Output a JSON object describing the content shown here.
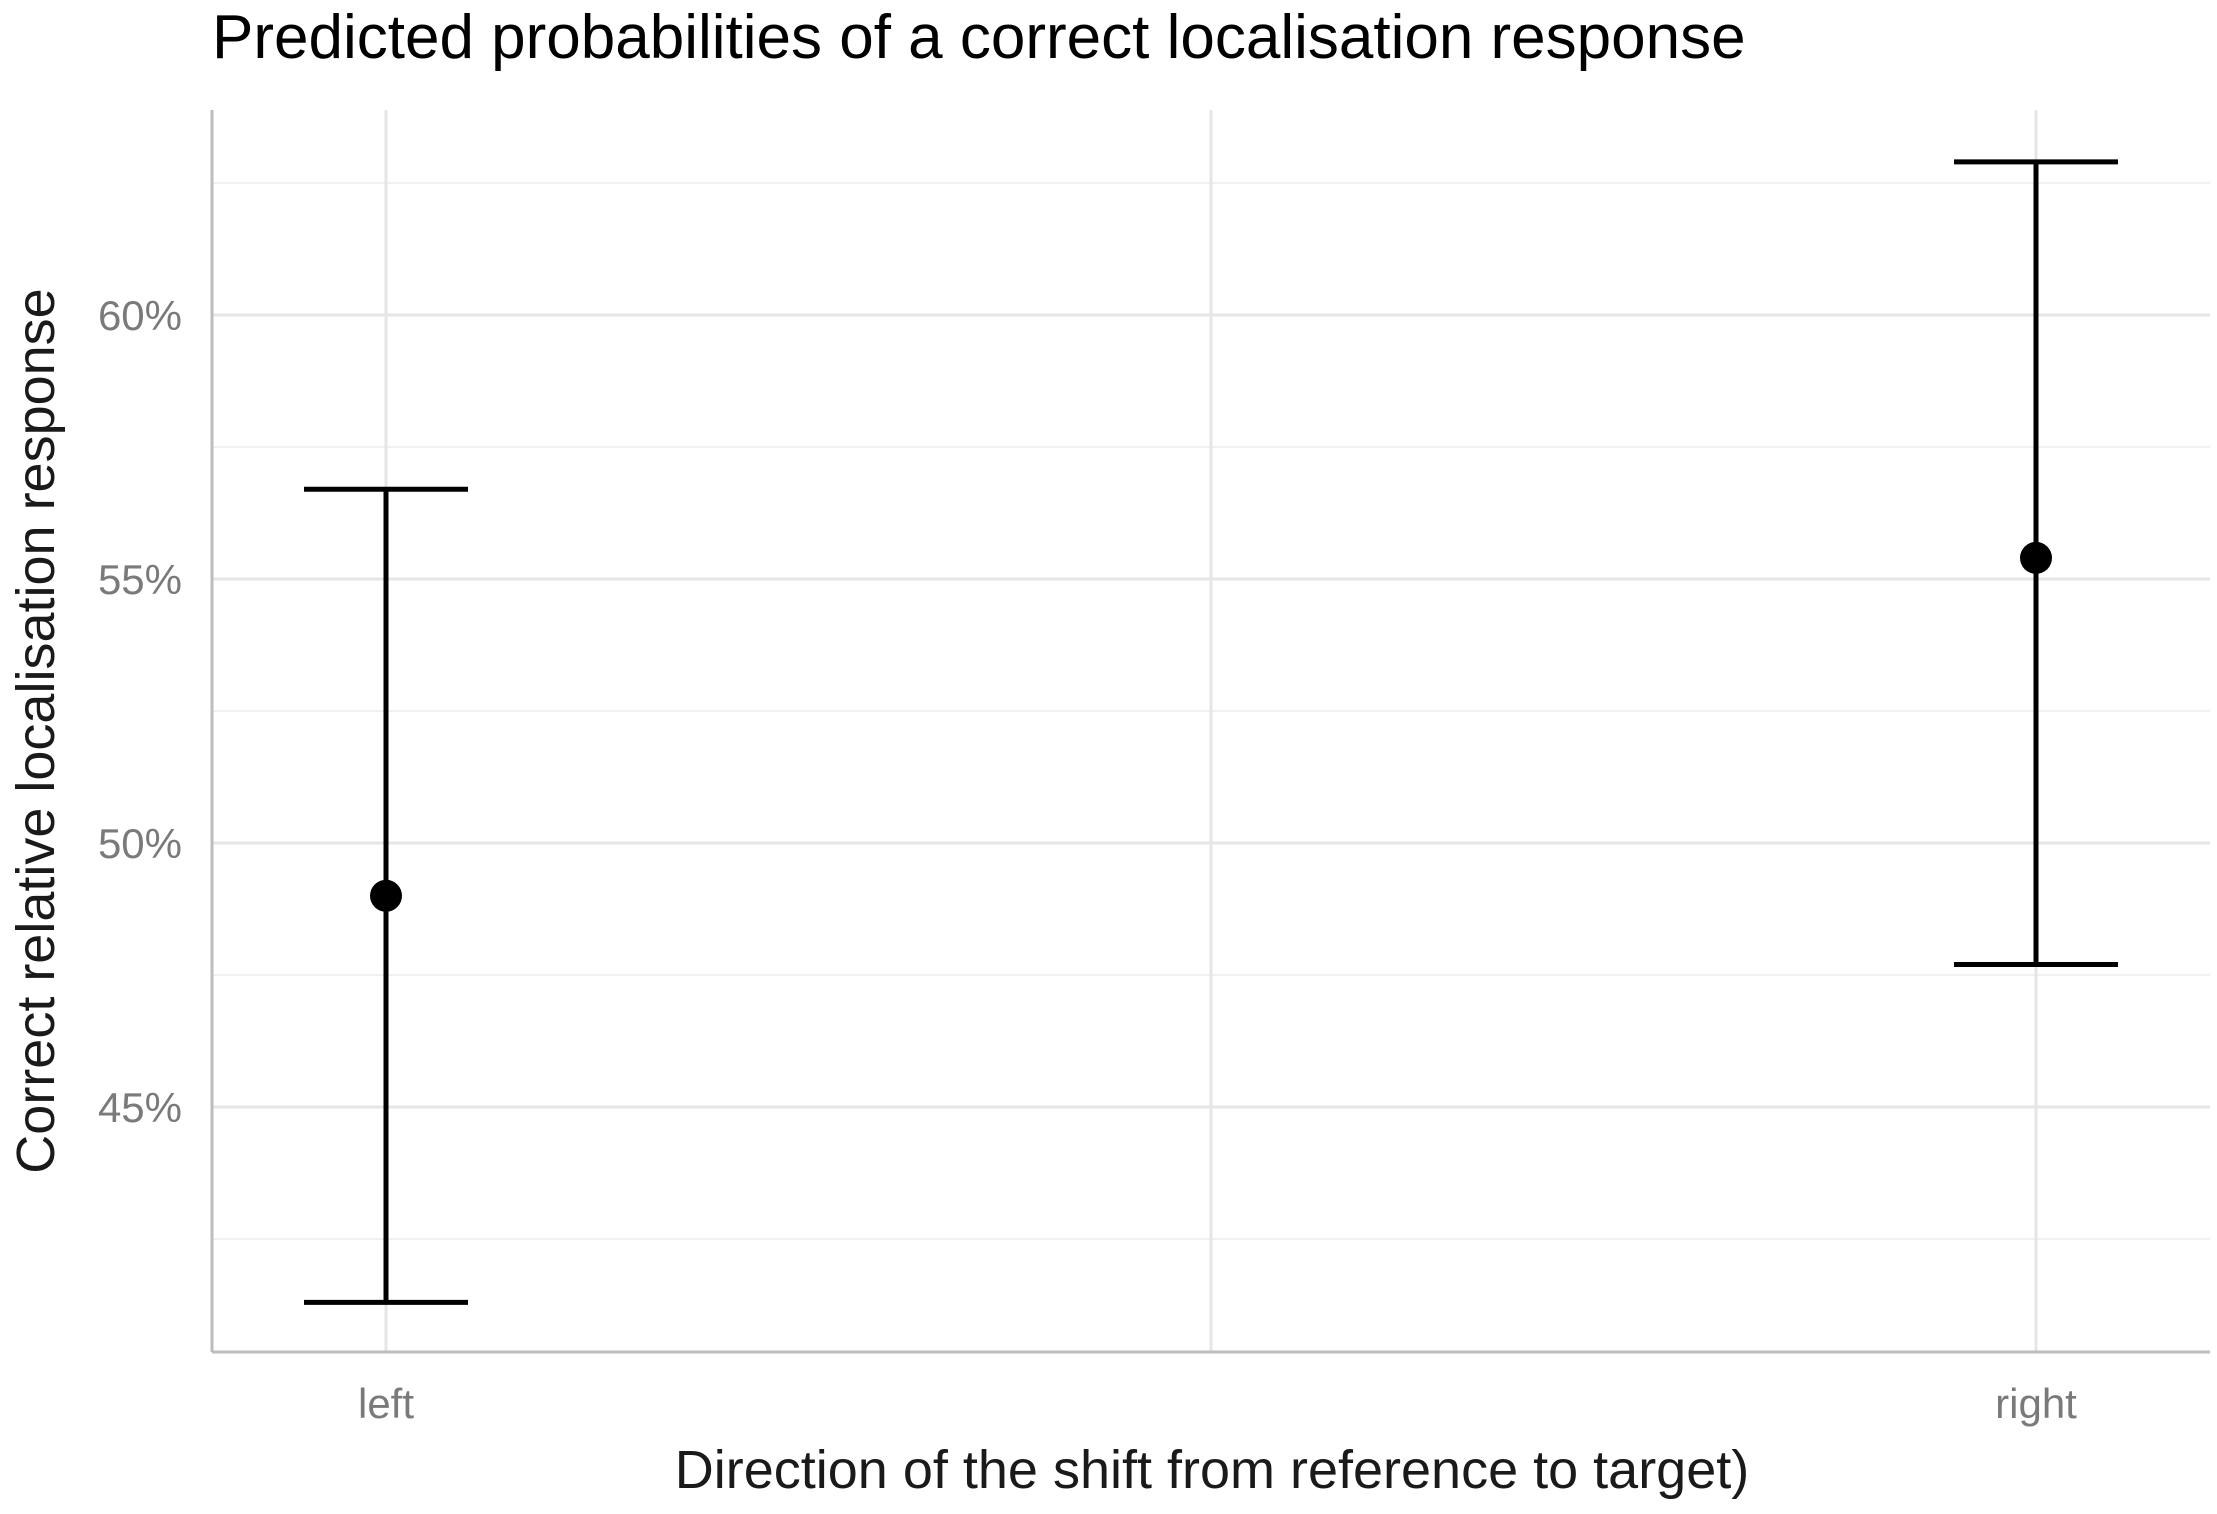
{
  "chart_data": {
    "type": "scatter",
    "title": "Predicted probabilities of a correct localisation response",
    "xlabel": "Direction of the shift from reference to target)",
    "ylabel": "Correct relative localisation response",
    "categories": [
      "left",
      "right"
    ],
    "series": [
      {
        "values": [
          49.0,
          55.4
        ],
        "lower": [
          41.3,
          47.7
        ],
        "upper": [
          56.7,
          62.9
        ]
      }
    ],
    "yticks": [
      45,
      50,
      55,
      60
    ],
    "ytick_labels": [
      "45%",
      "50%",
      "55%",
      "60%"
    ],
    "ylim": [
      40.85,
      63.5
    ],
    "grid": true,
    "legend": "none",
    "colors": {
      "point": "#000000",
      "grid": "#e6e6e6",
      "axis": "#bdbdbd",
      "tick_text": "#7a7a7a"
    }
  }
}
